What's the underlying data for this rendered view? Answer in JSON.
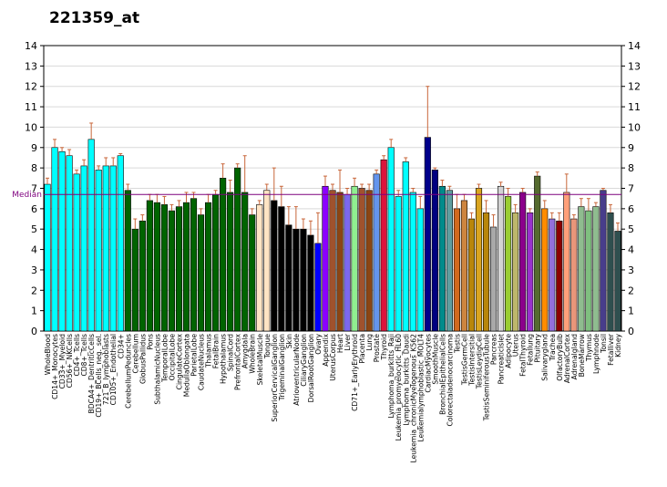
{
  "chart_data": {
    "type": "bar",
    "title": "221359_at",
    "xlabel": "",
    "ylabel": "",
    "ylim": [
      0,
      14
    ],
    "yticks": [
      0,
      1,
      2,
      3,
      4,
      5,
      6,
      7,
      8,
      9,
      10,
      11,
      12,
      13,
      14
    ],
    "grid": true,
    "median": 6.7,
    "median_label": "Median",
    "colors": {
      "median_line": "#7f007f",
      "error_bar": "#c8663a",
      "grid": "#d9d9d9",
      "border": "#000000"
    },
    "categories": [
      "WholeBlood",
      "CD14+_Monocytes",
      "CD33+_Myeloid",
      "CD56+_NKCells",
      "CD4+_Tcells",
      "CD8+_Tcells",
      "BDCA4+_DentriticCells",
      "CD19+_BCells_neg._sel.",
      "721_B_lymphoblasts",
      "CD105+_Endothelial",
      "CD34+",
      "CerebellumPeduncles",
      "Cerebellum",
      "GlobusPallidus",
      "Pons",
      "SubthalamicNucleus",
      "TemporalLobe",
      "OccipitalLobe",
      "CingulateCortex",
      "MedullaOblongata",
      "ParietalLobe",
      "CaudateNucleus",
      "Thalamus",
      "FetalBrain",
      "Hypothalamus",
      "SpinalCord",
      "PrefrontalCortex",
      "Amygdala",
      "WholeBrain",
      "SkeletalMuscle",
      "Tongue",
      "SuperiorCervicalGanglion",
      "TrigeminalGanglion",
      "Skin",
      "AtrioventricularNode",
      "CiliaryGanglion",
      "DorsalRootGanglion",
      "Ovary",
      "Appendix",
      "UterusCorpus",
      "Heart",
      "Liver",
      "CD71+_EarlyErythroid",
      "Placenta",
      "Lung",
      "Prostate",
      "Thyroid",
      "Lymphoma_burkitts_Raji",
      "Leukemia_promyelocytic_HL60",
      "Lymphoma_burkitts_Daudi",
      "Leukemia_chronicMyelogenous_K562",
      "Leukemialymphoblastic_MOLT4",
      "CardiacMyocytes",
      "SmoothMuscle",
      "BronchialEpithelialCells",
      "Colorectaladenocarcinoma",
      "Testis",
      "TestisGermCell",
      "TestisIntersitial",
      "TestisLeydigCell",
      "TestisSeminiferousTubule",
      "Pancreas",
      "PancreaticIslet",
      "Adipocyte",
      "Uterus",
      "FetalThyroid",
      "Fetallung",
      "Pituitary",
      "Salivarygland",
      "Trachea",
      "OlfactoryBulb",
      "AdrenalCortex",
      "Adrenalgland",
      "BoneMarrow",
      "Thymus",
      "Lymphnode",
      "Tonsil",
      "Fetalliver",
      "Kidney"
    ],
    "values": [
      7.2,
      9.0,
      8.8,
      8.6,
      7.7,
      8.1,
      9.4,
      7.9,
      8.1,
      8.1,
      8.6,
      6.9,
      5.0,
      5.4,
      6.4,
      6.3,
      6.2,
      5.9,
      6.1,
      6.3,
      6.5,
      5.7,
      6.3,
      6.7,
      7.5,
      6.8,
      8.0,
      6.8,
      5.7,
      6.2,
      6.9,
      6.4,
      6.1,
      5.2,
      5.0,
      5.0,
      4.7,
      4.3,
      7.1,
      6.9,
      6.8,
      6.7,
      7.1,
      7.0,
      6.9,
      7.7,
      8.4,
      9.0,
      6.6,
      8.3,
      6.8,
      6.0,
      9.5,
      7.9,
      7.1,
      6.9,
      6.0,
      6.4,
      5.5,
      7.0,
      5.8,
      5.1,
      7.1,
      6.6,
      5.8,
      6.8,
      5.8,
      7.6,
      6.0,
      5.5,
      5.4,
      6.8,
      5.5,
      6.1,
      5.9,
      6.1,
      6.9,
      5.8,
      4.9
    ],
    "errors": [
      0.3,
      0.4,
      0.2,
      0.3,
      0.2,
      0.3,
      0.8,
      0.2,
      0.4,
      0.4,
      0.1,
      0.3,
      0.5,
      0.3,
      0.3,
      0.4,
      0.4,
      0.3,
      0.3,
      0.5,
      0.3,
      0.3,
      0.4,
      0.2,
      0.7,
      0.6,
      0.2,
      1.8,
      0.3,
      0.2,
      0.3,
      1.6,
      1.0,
      0.9,
      1.1,
      0.5,
      0.7,
      1.5,
      0.5,
      0.3,
      1.1,
      0.3,
      0.4,
      0.2,
      0.3,
      0.2,
      0.2,
      0.4,
      0.3,
      0.2,
      0.2,
      0.6,
      2.5,
      0.1,
      0.3,
      0.2,
      0.7,
      0.3,
      0.3,
      0.2,
      0.6,
      0.6,
      0.2,
      0.4,
      0.4,
      0.2,
      0.2,
      0.2,
      0.4,
      0.3,
      0.4,
      0.9,
      0.2,
      0.4,
      0.6,
      0.2,
      0.1,
      0.4,
      0.4
    ],
    "bar_colors": [
      "#00ffff",
      "#00ffff",
      "#00ffff",
      "#00ffff",
      "#00ffff",
      "#00ffff",
      "#00ffff",
      "#00ffff",
      "#00ffff",
      "#00ffff",
      "#00ffff",
      "#006400",
      "#006400",
      "#006400",
      "#006400",
      "#006400",
      "#006400",
      "#006400",
      "#006400",
      "#006400",
      "#006400",
      "#006400",
      "#006400",
      "#006400",
      "#006400",
      "#006400",
      "#006400",
      "#006400",
      "#006400",
      "#ffe4c4",
      "#ffe4c4",
      "#000000",
      "#000000",
      "#000000",
      "#000000",
      "#000000",
      "#000000",
      "#0000ff",
      "#8b00ff",
      "#a0522d",
      "#8b4513",
      "#7b68ee",
      "#90ee90",
      "#a0522d",
      "#8b4513",
      "#6495ed",
      "#dc143c",
      "#00ffff",
      "#00ffff",
      "#00ffff",
      "#00ffff",
      "#00ffff",
      "#00008b",
      "#000080",
      "#008b8b",
      "#5f9ea0",
      "#d2691e",
      "#cd853f",
      "#b8860b",
      "#daa520",
      "#b8860b",
      "#a9a9a9",
      "#d3d3d3",
      "#9acd32",
      "#bdb76b",
      "#8b008b",
      "#9932cc",
      "#556b2f",
      "#ff8c00",
      "#9370db",
      "#8b0000",
      "#ffa07a",
      "#e9967a",
      "#8fbc8f",
      "#7fbf7f",
      "#8fbc8f",
      "#483d8b",
      "#2f4f4f",
      "#2f4f4f"
    ]
  }
}
